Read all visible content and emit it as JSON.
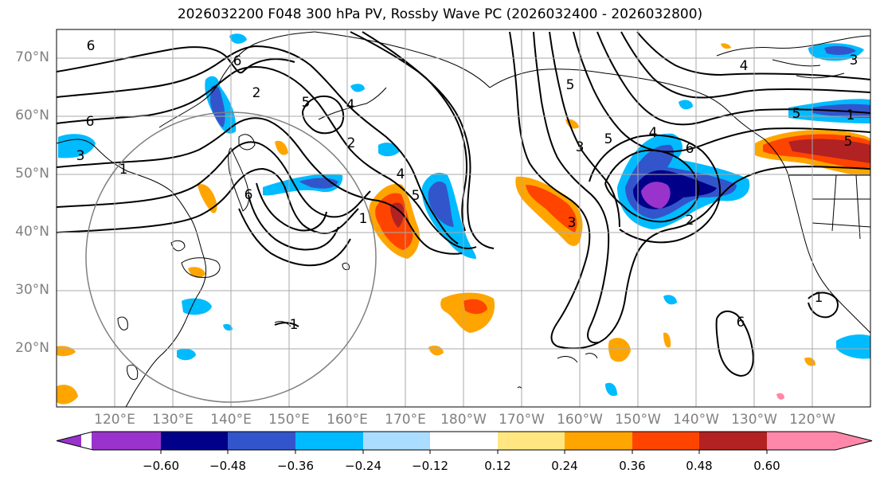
{
  "title": "2026032200 F048 300 hPa PV, Rossby Wave PC (2026032400 - 2026032800)",
  "latitude_labels": [
    "70°N",
    "60°N",
    "50°N",
    "40°N",
    "30°N",
    "20°N"
  ],
  "longitude_labels": [
    "120°E",
    "130°E",
    "140°E",
    "150°E",
    "160°E",
    "170°E",
    "180°W",
    "170°W",
    "160°W",
    "150°W",
    "140°W",
    "130°W",
    "120°W"
  ],
  "colorbar": {
    "tick_labels": [
      "−0.60",
      "−0.48",
      "−0.36",
      "−0.24",
      "−0.12",
      "0.12",
      "0.24",
      "0.36",
      "0.48",
      "0.60"
    ],
    "colors": [
      "#9933cc",
      "#000088",
      "#3355cc",
      "#00bbff",
      "#aaddff",
      "#ffffff",
      "#ffe680",
      "#ffa500",
      "#ff4400",
      "#b22222",
      "#ff88aa"
    ]
  },
  "contour_labels": [
    "6",
    "6",
    "2",
    "5",
    "4",
    "2",
    "3",
    "6",
    "5",
    "4",
    "5",
    "3",
    "6",
    "5",
    "5",
    "1",
    "2",
    "6",
    "3",
    "4",
    "5",
    "3",
    "1",
    "6",
    "1",
    "1",
    "1",
    "4"
  ]
}
